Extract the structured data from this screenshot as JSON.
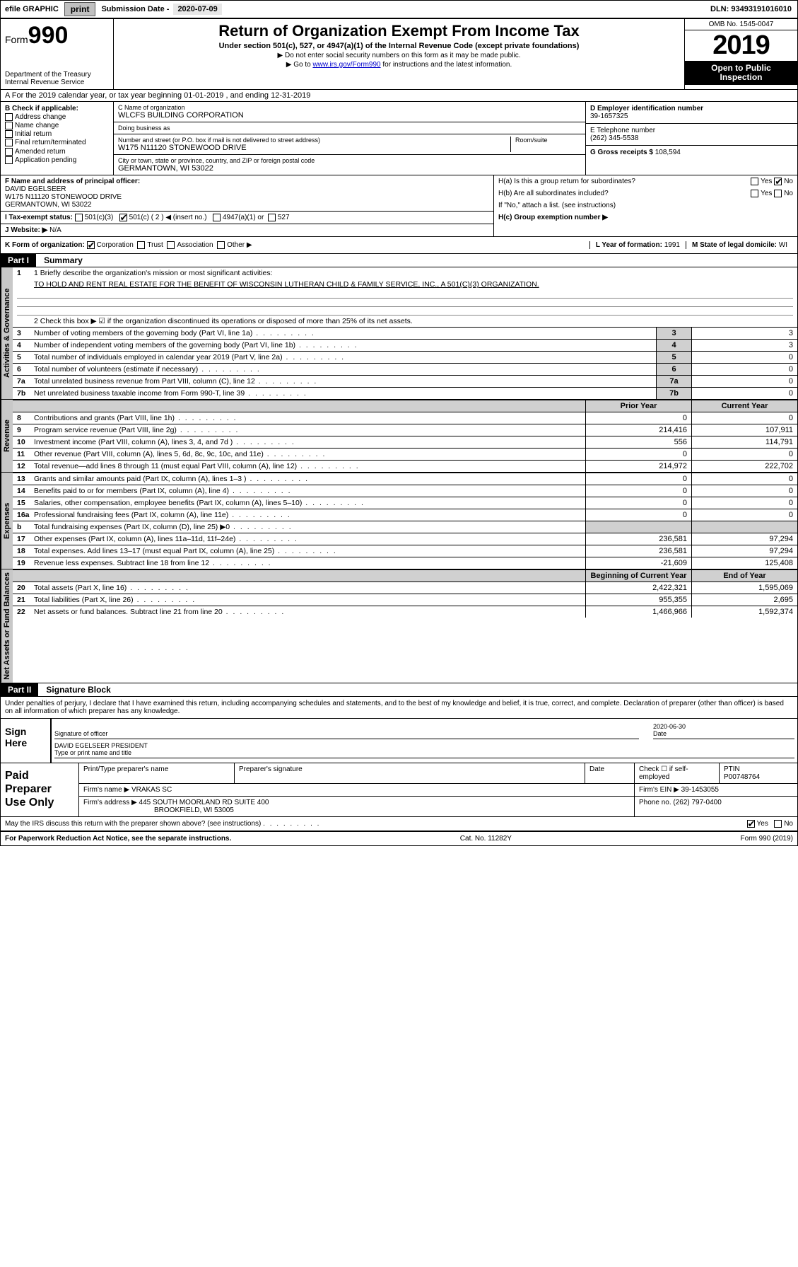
{
  "colors": {
    "black": "#000000",
    "white": "#ffffff",
    "gray_btn": "#c0c0c0",
    "gray_field": "#e8e8e8",
    "gray_tab": "#c8c8c8",
    "gray_cell": "#d0d0d0",
    "link": "#0000cc"
  },
  "topbar": {
    "efile": "efile GRAPHIC",
    "print": "print",
    "sub_label": "Submission Date - ",
    "sub_date": "2020-07-09",
    "dln_label": "DLN: ",
    "dln": "93493191016010"
  },
  "header": {
    "form_small": "Form",
    "form_big": "990",
    "dept": "Department of the Treasury\nInternal Revenue Service",
    "title": "Return of Organization Exempt From Income Tax",
    "subtitle": "Under section 501(c), 527, or 4947(a)(1) of the Internal Revenue Code (except private foundations)",
    "note1": "▶ Do not enter social security numbers on this form as it may be made public.",
    "note2_pre": "▶ Go to ",
    "note2_link": "www.irs.gov/Form990",
    "note2_post": " for instructions and the latest information.",
    "omb": "OMB No. 1545-0047",
    "year": "2019",
    "inspect1": "Open to Public",
    "inspect2": "Inspection"
  },
  "row_a": "A For the 2019 calendar year, or tax year beginning 01-01-2019    , and ending 12-31-2019",
  "section_b": {
    "label": "B Check if applicable:",
    "items": [
      "Address change",
      "Name change",
      "Initial return",
      "Final return/terminated",
      "Amended return",
      "Application pending"
    ]
  },
  "section_c": {
    "name_lbl": "C Name of organization",
    "name": "WLCFS BUILDING CORPORATION",
    "dba_lbl": "Doing business as",
    "dba": "",
    "addr_lbl": "Number and street (or P.O. box if mail is not delivered to street address)",
    "room_lbl": "Room/suite",
    "addr": "W175 N11120 STONEWOOD DRIVE",
    "city_lbl": "City or town, state or province, country, and ZIP or foreign postal code",
    "city": "GERMANTOWN, WI  53022"
  },
  "section_d": {
    "ein_lbl": "D Employer identification number",
    "ein": "39-1657325",
    "tel_lbl": "E Telephone number",
    "tel": "(262) 345-5538",
    "gross_lbl": "G Gross receipts $ ",
    "gross": "108,594"
  },
  "section_f": {
    "lbl": "F  Name and address of principal officer:",
    "name": "DAVID EGELSEER",
    "addr1": "W175 N11120 STONEWOOD DRIVE",
    "addr2": "GERMANTOWN, WI  53022"
  },
  "section_h": {
    "ha_lbl": "H(a)  Is this a group return for subordinates?",
    "hb_lbl": "H(b)  Are all subordinates included?",
    "hb_note": "If \"No,\" attach a list. (see instructions)",
    "hc_lbl": "H(c)  Group exemption number ▶",
    "yes": "Yes",
    "no": "No"
  },
  "section_i": {
    "lbl": "I   Tax-exempt status:",
    "opts": [
      "501(c)(3)",
      "501(c) ( 2 ) ◀ (insert no.)",
      "4947(a)(1) or",
      "527"
    ],
    "checked_index": 1
  },
  "section_j": {
    "lbl": "J   Website: ▶",
    "val": "N/A"
  },
  "row_k": {
    "lbl": "K Form of organization:",
    "opts": [
      "Corporation",
      "Trust",
      "Association",
      "Other ▶"
    ],
    "checked_index": 0,
    "l_lbl": "L Year of formation: ",
    "l_val": "1991",
    "m_lbl": "M State of legal domicile: ",
    "m_val": "WI"
  },
  "part1": {
    "header": "Part I",
    "title": "Summary",
    "line1_lbl": "1  Briefly describe the organization's mission or most significant activities:",
    "line1_val": "TO HOLD AND RENT REAL ESTATE FOR THE BENEFIT OF WISCONSIN LUTHERAN CHILD & FAMILY SERVICE, INC., A 501(C)(3) ORGANIZATION.",
    "line2": "2    Check this box ▶ ☑  if the organization discontinued its operations or disposed of more than 25% of its net assets.",
    "tabs": {
      "gov": "Activities & Governance",
      "rev": "Revenue",
      "exp": "Expenses",
      "net": "Net Assets or Fund Balances"
    },
    "gov_lines": [
      {
        "n": "3",
        "d": "Number of voting members of the governing body (Part VI, line 1a)",
        "c": "3",
        "v": "3"
      },
      {
        "n": "4",
        "d": "Number of independent voting members of the governing body (Part VI, line 1b)",
        "c": "4",
        "v": "3"
      },
      {
        "n": "5",
        "d": "Total number of individuals employed in calendar year 2019 (Part V, line 2a)",
        "c": "5",
        "v": "0"
      },
      {
        "n": "6",
        "d": "Total number of volunteers (estimate if necessary)",
        "c": "6",
        "v": "0"
      },
      {
        "n": "7a",
        "d": "Total unrelated business revenue from Part VIII, column (C), line 12",
        "c": "7a",
        "v": "0"
      },
      {
        "n": "7b",
        "d": "Net unrelated business taxable income from Form 990-T, line 39",
        "c": "7b",
        "v": "0"
      }
    ],
    "two_col_header": {
      "prior": "Prior Year",
      "current": "Current Year",
      "begin": "Beginning of Current Year",
      "end": "End of Year"
    },
    "rev_lines": [
      {
        "n": "8",
        "d": "Contributions and grants (Part VIII, line 1h)",
        "p": "0",
        "c": "0"
      },
      {
        "n": "9",
        "d": "Program service revenue (Part VIII, line 2g)",
        "p": "214,416",
        "c": "107,911"
      },
      {
        "n": "10",
        "d": "Investment income (Part VIII, column (A), lines 3, 4, and 7d )",
        "p": "556",
        "c": "114,791"
      },
      {
        "n": "11",
        "d": "Other revenue (Part VIII, column (A), lines 5, 6d, 8c, 9c, 10c, and 11e)",
        "p": "0",
        "c": "0"
      },
      {
        "n": "12",
        "d": "Total revenue—add lines 8 through 11 (must equal Part VIII, column (A), line 12)",
        "p": "214,972",
        "c": "222,702"
      }
    ],
    "exp_lines": [
      {
        "n": "13",
        "d": "Grants and similar amounts paid (Part IX, column (A), lines 1–3 )",
        "p": "0",
        "c": "0"
      },
      {
        "n": "14",
        "d": "Benefits paid to or for members (Part IX, column (A), line 4)",
        "p": "0",
        "c": "0"
      },
      {
        "n": "15",
        "d": "Salaries, other compensation, employee benefits (Part IX, column (A), lines 5–10)",
        "p": "0",
        "c": "0"
      },
      {
        "n": "16a",
        "d": "Professional fundraising fees (Part IX, column (A), line 11e)",
        "p": "0",
        "c": "0"
      },
      {
        "n": "b",
        "d": "Total fundraising expenses (Part IX, column (D), line 25) ▶0",
        "p": "",
        "c": "",
        "shade": true
      },
      {
        "n": "17",
        "d": "Other expenses (Part IX, column (A), lines 11a–11d, 11f–24e)",
        "p": "236,581",
        "c": "97,294"
      },
      {
        "n": "18",
        "d": "Total expenses. Add lines 13–17 (must equal Part IX, column (A), line 25)",
        "p": "236,581",
        "c": "97,294"
      },
      {
        "n": "19",
        "d": "Revenue less expenses. Subtract line 18 from line 12",
        "p": "-21,609",
        "c": "125,408"
      }
    ],
    "net_lines": [
      {
        "n": "20",
        "d": "Total assets (Part X, line 16)",
        "p": "2,422,321",
        "c": "1,595,069"
      },
      {
        "n": "21",
        "d": "Total liabilities (Part X, line 26)",
        "p": "955,355",
        "c": "2,695"
      },
      {
        "n": "22",
        "d": "Net assets or fund balances. Subtract line 21 from line 20",
        "p": "1,466,966",
        "c": "1,592,374"
      }
    ]
  },
  "part2": {
    "header": "Part II",
    "title": "Signature Block",
    "perjury": "Under penalties of perjury, I declare that I have examined this return, including accompanying schedules and statements, and to the best of my knowledge and belief, it is true, correct, and complete. Declaration of preparer (other than officer) is based on all information of which preparer has any knowledge.",
    "sign_here": "Sign Here",
    "sig_officer_lbl": "Signature of officer",
    "date_lbl": "Date",
    "date_val": "2020-06-30",
    "officer_name": "DAVID EGELSEER  PRESIDENT",
    "officer_name_lbl": "Type or print name and title",
    "paid": "Paid Preparer Use Only",
    "prep_name_lbl": "Print/Type preparer's name",
    "prep_sig_lbl": "Preparer's signature",
    "prep_date_lbl": "Date",
    "check_self_lbl": "Check ☐ if self-employed",
    "ptin_lbl": "PTIN",
    "ptin": "P00748764",
    "firm_name_lbl": "Firm's name      ▶ ",
    "firm_name": "VRAKAS SC",
    "firm_ein_lbl": "Firm's EIN ▶ ",
    "firm_ein": "39-1453055",
    "firm_addr_lbl": "Firm's address ▶ ",
    "firm_addr1": "445 SOUTH MOORLAND RD SUITE 400",
    "firm_addr2": "BROOKFIELD, WI  53005",
    "phone_lbl": "Phone no. ",
    "phone": "(262) 797-0400",
    "discuss": "May the IRS discuss this return with the preparer shown above? (see instructions)",
    "yes": "Yes",
    "no": "No"
  },
  "footer": {
    "left": "For Paperwork Reduction Act Notice, see the separate instructions.",
    "mid": "Cat. No. 11282Y",
    "right": "Form 990 (2019)"
  }
}
